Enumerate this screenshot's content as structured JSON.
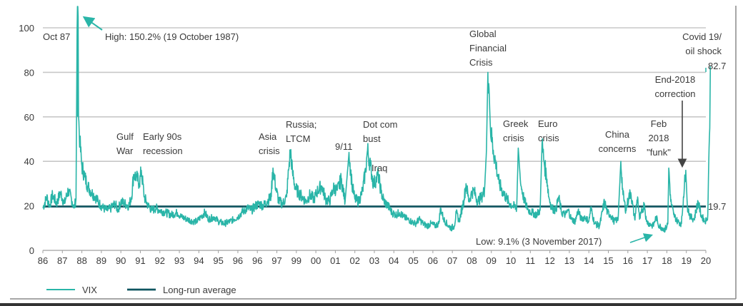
{
  "chart_data": {
    "type": "line",
    "title": "",
    "xlabel": "",
    "ylabel": "",
    "ylim": [
      0,
      100
    ],
    "yticks": [
      0,
      20,
      40,
      60,
      80,
      100
    ],
    "xlim": [
      1986,
      2020.3
    ],
    "x_tick_labels": [
      "86",
      "87",
      "88",
      "89",
      "90",
      "91",
      "92",
      "93",
      "94",
      "95",
      "96",
      "96",
      "97",
      "99",
      "00",
      "01",
      "02",
      "03",
      "04",
      "05",
      "06",
      "07",
      "08",
      "09",
      "10",
      "11",
      "12",
      "13",
      "14",
      "15",
      "16",
      "17",
      "18",
      "19",
      "20"
    ],
    "grid": "horizontal",
    "legend": {
      "placement": "bottom-left",
      "entries": [
        {
          "label": "VIX",
          "color": "#2ab5a8"
        },
        {
          "label": "Long-run average",
          "color": "#0f5560"
        }
      ]
    },
    "colors": {
      "vix": "#2ab5a8",
      "average": "#0f5560",
      "grid": "#c8c8c8",
      "text": "#3a3a3a",
      "arrow_dark": "#444444"
    },
    "series": [
      {
        "name": "VIX",
        "points": [
          [
            1986.0,
            19
          ],
          [
            1986.2,
            24
          ],
          [
            1986.35,
            20
          ],
          [
            1986.5,
            25
          ],
          [
            1986.7,
            21
          ],
          [
            1986.9,
            26
          ],
          [
            1987.1,
            21
          ],
          [
            1987.3,
            27
          ],
          [
            1987.5,
            22
          ],
          [
            1987.6,
            19
          ],
          [
            1987.7,
            23
          ],
          [
            1987.79,
            150.2
          ],
          [
            1987.83,
            60
          ],
          [
            1987.9,
            48
          ],
          [
            1988.0,
            38
          ],
          [
            1988.15,
            33
          ],
          [
            1988.3,
            29
          ],
          [
            1988.5,
            26
          ],
          [
            1988.7,
            24
          ],
          [
            1988.9,
            21
          ],
          [
            1989.1,
            19
          ],
          [
            1989.3,
            18
          ],
          [
            1989.5,
            19
          ],
          [
            1989.7,
            21
          ],
          [
            1989.85,
            18
          ],
          [
            1990.0,
            22
          ],
          [
            1990.2,
            21
          ],
          [
            1990.4,
            20
          ],
          [
            1990.55,
            24
          ],
          [
            1990.65,
            34
          ],
          [
            1990.8,
            33
          ],
          [
            1990.95,
            30
          ],
          [
            1991.05,
            36
          ],
          [
            1991.2,
            24
          ],
          [
            1991.4,
            20
          ],
          [
            1991.6,
            18
          ],
          [
            1991.8,
            19
          ],
          [
            1992.0,
            18
          ],
          [
            1992.3,
            17
          ],
          [
            1992.6,
            16
          ],
          [
            1992.9,
            17
          ],
          [
            1993.1,
            15
          ],
          [
            1993.4,
            14
          ],
          [
            1993.7,
            13
          ],
          [
            1993.9,
            13
          ],
          [
            1994.1,
            15
          ],
          [
            1994.3,
            17
          ],
          [
            1994.5,
            14
          ],
          [
            1994.8,
            15
          ],
          [
            1995.0,
            13
          ],
          [
            1995.3,
            12
          ],
          [
            1995.6,
            13
          ],
          [
            1995.8,
            14
          ],
          [
            1996.0,
            15
          ],
          [
            1996.2,
            17
          ],
          [
            1996.5,
            19
          ],
          [
            1996.7,
            18
          ],
          [
            1996.9,
            20
          ],
          [
            1997.1,
            21
          ],
          [
            1997.3,
            20
          ],
          [
            1997.5,
            22
          ],
          [
            1997.7,
            24
          ],
          [
            1997.8,
            37
          ],
          [
            1997.95,
            28
          ],
          [
            1998.1,
            22
          ],
          [
            1998.3,
            21
          ],
          [
            1998.5,
            24
          ],
          [
            1998.6,
            36
          ],
          [
            1998.7,
            45
          ],
          [
            1998.8,
            35
          ],
          [
            1998.95,
            28
          ],
          [
            1999.1,
            26
          ],
          [
            1999.3,
            24
          ],
          [
            1999.5,
            22
          ],
          [
            1999.7,
            25
          ],
          [
            1999.9,
            23
          ],
          [
            2000.1,
            27
          ],
          [
            2000.3,
            29
          ],
          [
            2000.5,
            23
          ],
          [
            2000.7,
            22
          ],
          [
            2000.9,
            28
          ],
          [
            2001.1,
            27
          ],
          [
            2001.3,
            32
          ],
          [
            2001.5,
            22
          ],
          [
            2001.7,
            44
          ],
          [
            2001.85,
            30
          ],
          [
            2002.0,
            23
          ],
          [
            2002.2,
            22
          ],
          [
            2002.4,
            27
          ],
          [
            2002.55,
            36
          ],
          [
            2002.65,
            45
          ],
          [
            2002.8,
            38
          ],
          [
            2002.95,
            30
          ],
          [
            2003.1,
            32
          ],
          [
            2003.2,
            34
          ],
          [
            2003.35,
            26
          ],
          [
            2003.5,
            22
          ],
          [
            2003.7,
            20
          ],
          [
            2003.9,
            17
          ],
          [
            2004.1,
            16
          ],
          [
            2004.3,
            17
          ],
          [
            2004.5,
            15
          ],
          [
            2004.7,
            14
          ],
          [
            2004.9,
            13
          ],
          [
            2005.1,
            12
          ],
          [
            2005.3,
            14
          ],
          [
            2005.5,
            12
          ],
          [
            2005.7,
            11
          ],
          [
            2005.9,
            12
          ],
          [
            2006.1,
            11
          ],
          [
            2006.3,
            12
          ],
          [
            2006.4,
            19
          ],
          [
            2006.55,
            14
          ],
          [
            2006.8,
            11
          ],
          [
            2006.95,
            10
          ],
          [
            2007.1,
            11
          ],
          [
            2007.2,
            17
          ],
          [
            2007.35,
            13
          ],
          [
            2007.6,
            23
          ],
          [
            2007.7,
            30
          ],
          [
            2007.85,
            22
          ],
          [
            2007.95,
            25
          ],
          [
            2008.1,
            27
          ],
          [
            2008.3,
            22
          ],
          [
            2008.5,
            24
          ],
          [
            2008.65,
            27
          ],
          [
            2008.75,
            45
          ],
          [
            2008.82,
            80
          ],
          [
            2008.88,
            73
          ],
          [
            2008.95,
            55
          ],
          [
            2009.1,
            45
          ],
          [
            2009.25,
            38
          ],
          [
            2009.4,
            30
          ],
          [
            2009.6,
            26
          ],
          [
            2009.8,
            23
          ],
          [
            2009.95,
            21
          ],
          [
            2010.1,
            20
          ],
          [
            2010.3,
            19
          ],
          [
            2010.38,
            46
          ],
          [
            2010.5,
            30
          ],
          [
            2010.7,
            22
          ],
          [
            2010.9,
            18
          ],
          [
            2011.1,
            17
          ],
          [
            2011.3,
            16
          ],
          [
            2011.5,
            18
          ],
          [
            2011.6,
            48
          ],
          [
            2011.7,
            40
          ],
          [
            2011.85,
            32
          ],
          [
            2011.95,
            24
          ],
          [
            2012.1,
            19
          ],
          [
            2012.3,
            18
          ],
          [
            2012.45,
            24
          ],
          [
            2012.6,
            17
          ],
          [
            2012.8,
            16
          ],
          [
            2012.95,
            18
          ],
          [
            2013.1,
            14
          ],
          [
            2013.3,
            13
          ],
          [
            2013.45,
            18
          ],
          [
            2013.6,
            14
          ],
          [
            2013.8,
            15
          ],
          [
            2014.0,
            13
          ],
          [
            2014.1,
            19
          ],
          [
            2014.3,
            12
          ],
          [
            2014.55,
            11
          ],
          [
            2014.8,
            22
          ],
          [
            2014.95,
            17
          ],
          [
            2015.1,
            16
          ],
          [
            2015.3,
            13
          ],
          [
            2015.5,
            14
          ],
          [
            2015.64,
            40
          ],
          [
            2015.75,
            25
          ],
          [
            2015.9,
            18
          ],
          [
            2016.05,
            24
          ],
          [
            2016.15,
            26
          ],
          [
            2016.35,
            14
          ],
          [
            2016.5,
            24
          ],
          [
            2016.6,
            14
          ],
          [
            2016.85,
            21
          ],
          [
            2016.95,
            13
          ],
          [
            2017.1,
            12
          ],
          [
            2017.3,
            11
          ],
          [
            2017.45,
            15
          ],
          [
            2017.6,
            11
          ],
          [
            2017.8,
            10
          ],
          [
            2017.84,
            9.1
          ],
          [
            2017.95,
            10
          ],
          [
            2018.05,
            12
          ],
          [
            2018.1,
            37
          ],
          [
            2018.2,
            22
          ],
          [
            2018.35,
            16
          ],
          [
            2018.55,
            13
          ],
          [
            2018.75,
            12
          ],
          [
            2018.85,
            24
          ],
          [
            2018.97,
            36
          ],
          [
            2019.05,
            20
          ],
          [
            2019.2,
            15
          ],
          [
            2019.4,
            14
          ],
          [
            2019.6,
            22
          ],
          [
            2019.75,
            16
          ],
          [
            2019.95,
            13
          ],
          [
            2020.05,
            14
          ],
          [
            2020.1,
            16
          ],
          [
            2020.15,
            40
          ],
          [
            2020.2,
            55
          ],
          [
            2020.23,
            82.7
          ]
        ]
      },
      {
        "name": "Long-run average",
        "constant": 19.7
      }
    ],
    "annotations": [
      {
        "id": "oct87",
        "lines": [
          "Oct 87"
        ]
      },
      {
        "id": "high",
        "lines": [
          "High:  150.2%  (19 October 1987)"
        ],
        "arrow": true,
        "arrow_target": [
          1987.95,
          100
        ]
      },
      {
        "id": "gulf",
        "lines": [
          "Gulf",
          "War"
        ]
      },
      {
        "id": "early90s",
        "lines": [
          "Early 90s",
          "recession"
        ]
      },
      {
        "id": "asia",
        "lines": [
          "Asia",
          "crisis"
        ]
      },
      {
        "id": "russia",
        "lines": [
          "Russia;",
          "LTCM"
        ]
      },
      {
        "id": "nine11",
        "lines": [
          "9/11"
        ]
      },
      {
        "id": "dotcom",
        "lines": [
          "Dot com",
          "bust"
        ]
      },
      {
        "id": "iraq",
        "lines": [
          "Iraq"
        ]
      },
      {
        "id": "gfc",
        "lines": [
          "Global",
          "Financial",
          "Crisis"
        ]
      },
      {
        "id": "greek",
        "lines": [
          "Greek",
          "crisis"
        ]
      },
      {
        "id": "euro",
        "lines": [
          "Euro",
          "crisis"
        ]
      },
      {
        "id": "china",
        "lines": [
          "China",
          "concerns"
        ]
      },
      {
        "id": "feb2018",
        "lines": [
          "Feb",
          "2018",
          "\"funk\""
        ]
      },
      {
        "id": "end2018",
        "lines": [
          "End-2018",
          "correction"
        ],
        "arrow": true,
        "arrow_target": [
          2018.97,
          37
        ]
      },
      {
        "id": "covid",
        "lines": [
          "Covid 19/",
          "oil shock"
        ]
      },
      {
        "id": "last",
        "lines": [
          "82.7"
        ]
      },
      {
        "id": "avg",
        "lines": [
          "19.7"
        ]
      },
      {
        "id": "low",
        "lines": [
          "Low: 9.1%  (3 November 2017)"
        ],
        "arrow": true,
        "arrow_target": [
          2017.84,
          11
        ]
      }
    ]
  }
}
